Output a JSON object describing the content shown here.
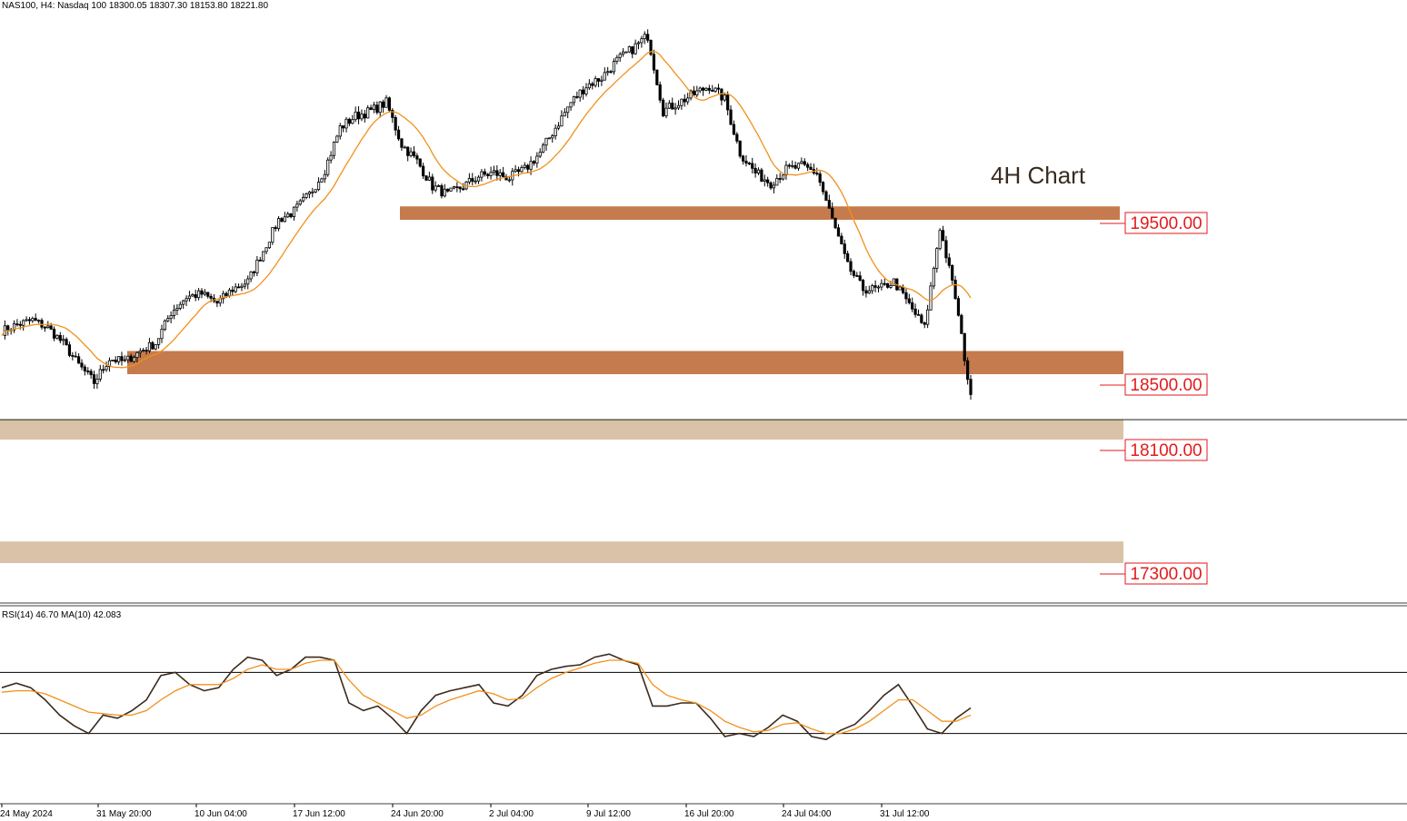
{
  "header": {
    "symbol_line": "NAS100, H4:  Nasdaq 100  18300.05 18307.30 18153.80 18221.80"
  },
  "annotation": "4H Chart",
  "levels": [
    {
      "label": "19500.00",
      "value": 19500,
      "zone": [
        19500,
        19580
      ],
      "color": "#c57b4d",
      "label_color": "#e31a1c"
    },
    {
      "label": "18500.00",
      "value": 18500,
      "zone": [
        18500,
        18650
      ],
      "color": "#c57b4d",
      "label_color": "#e31a1c"
    },
    {
      "label": "18100.00",
      "value": 18100,
      "zone": [
        18100,
        18220
      ],
      "color": "#d9c2a7",
      "label_color": "#e31a1c"
    },
    {
      "label": "17300.00",
      "value": 17300,
      "zone": [
        17300,
        17440
      ],
      "color": "#d9c2a7",
      "label_color": "#e31a1c"
    }
  ],
  "current_price_line": 18221.8,
  "rsi": {
    "label": "RSI(14) 46.70 MA(10) 42.083",
    "upper": 70,
    "lower": 30,
    "line_color": "#3b2a1c",
    "ma_color": "#f2901a"
  },
  "x_axis_labels": [
    "24 May 2024",
    "31 May 20:00",
    "10 Jun 04:00",
    "17 Jun 12:00",
    "24 Jun 20:00",
    "2 Jul 04:00",
    "9 Jul 12:00",
    "16 Jul 20:00",
    "24 Jul 04:00",
    "31 Jul 12:00"
  ],
  "colors": {
    "candle": "#000000",
    "ma": "#f2901a",
    "grid_line": "#000000"
  },
  "chart_data": [
    {
      "type": "line",
      "title": "",
      "description_series": "NAS100 H4 closing path with moving average",
      "price_range": [
        17150,
        20650
      ],
      "series": [
        {
          "name": "",
          "x_index": [
            0,
            5,
            10,
            15,
            20,
            25,
            30,
            35,
            40,
            45,
            50,
            55,
            60,
            65,
            70,
            75,
            80,
            85,
            90,
            95,
            100,
            105,
            110,
            115,
            120,
            125,
            130,
            135,
            140,
            145,
            150,
            155,
            160,
            165,
            170,
            175,
            180,
            185,
            190,
            195,
            200,
            205,
            210,
            215,
            220,
            225,
            230,
            235,
            240,
            245,
            250,
            255,
            260,
            265,
            270,
            275,
            280,
            285,
            290,
            295,
            300,
            305,
            310,
            315
          ],
          "values": [
            18780,
            18820,
            18850,
            18800,
            18700,
            18560,
            18450,
            18600,
            18580,
            18650,
            18700,
            18900,
            19000,
            19020,
            18960,
            19050,
            19100,
            19300,
            19500,
            19550,
            19650,
            19800,
            20050,
            20120,
            20150,
            20200,
            19950,
            19850,
            19700,
            19650,
            19700,
            19760,
            19780,
            19750,
            19800,
            19900,
            20050,
            20200,
            20300,
            20350,
            20450,
            20520,
            20600,
            20150,
            20200,
            20250,
            20300,
            20220,
            19900,
            19780,
            19720,
            19800,
            19820,
            19780,
            19500,
            19200,
            19050,
            19050,
            19100,
            18950,
            18800,
            19450,
            19000,
            18350
          ]
        }
      ]
    },
    {
      "type": "line",
      "title": "RSI(14) 46.70 MA(10) 42.083",
      "ylim": [
        0,
        100
      ],
      "series": [
        {
          "name": "RSI(14)",
          "values": [
            60,
            63,
            60,
            52,
            42,
            35,
            30,
            42,
            40,
            45,
            52,
            68,
            70,
            62,
            58,
            60,
            72,
            80,
            78,
            68,
            72,
            80,
            80,
            78,
            50,
            45,
            48,
            40,
            30,
            45,
            55,
            58,
            60,
            62,
            50,
            48,
            55,
            68,
            72,
            74,
            75,
            80,
            82,
            78,
            75,
            48,
            48,
            50,
            50,
            40,
            28,
            30,
            28,
            34,
            42,
            38,
            28,
            26,
            32,
            36,
            45,
            55,
            62,
            48,
            33,
            30,
            40,
            46.7
          ]
        },
        {
          "name": "MA(10)",
          "values": [
            57,
            58,
            58,
            56,
            52,
            48,
            44,
            43,
            42,
            42,
            45,
            52,
            58,
            62,
            62,
            62,
            66,
            72,
            75,
            72,
            72,
            76,
            78,
            78,
            65,
            55,
            50,
            45,
            40,
            42,
            48,
            52,
            55,
            58,
            56,
            52,
            53,
            60,
            66,
            70,
            73,
            76,
            78,
            78,
            76,
            62,
            55,
            52,
            50,
            45,
            38,
            34,
            31,
            32,
            36,
            37,
            33,
            30,
            30,
            33,
            38,
            45,
            52,
            52,
            45,
            38,
            38,
            42.083
          ]
        }
      ]
    }
  ]
}
